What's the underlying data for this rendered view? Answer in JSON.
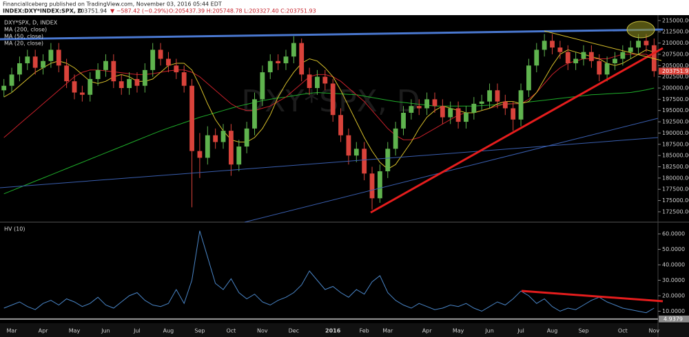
{
  "header": {
    "publisher": "FinancialIceberg published on TradingView.com, November 03, 2016 05:44 EDT",
    "symbol": "INDEX:DXY*INDEX:SPX, D",
    "last": "203751.94",
    "change": "▼ −587.42 (−0.29%)",
    "ohlc": "O:205437.39 H:205748.78 L:203327.40 C:203751.93"
  },
  "chart_data": [
    {
      "type": "candlestick",
      "title": "DXY*SPX, D, INDEX",
      "watermark": "DXY*SPX, D",
      "up_color": "#5fb34e",
      "down_color": "#d9433b",
      "categories": [
        null,
        "Mar",
        null,
        null,
        null,
        "Apr",
        null,
        null,
        null,
        "May",
        null,
        null,
        null,
        "Jun",
        null,
        null,
        null,
        "Jul",
        null,
        null,
        null,
        "Aug",
        null,
        null,
        null,
        "Sep",
        null,
        null,
        null,
        "Oct",
        null,
        null,
        null,
        "Nov",
        null,
        null,
        null,
        "Dec",
        null,
        null,
        null,
        null,
        "2016",
        null,
        null,
        null,
        "Feb",
        null,
        null,
        "Mar",
        null,
        null,
        null,
        null,
        "Apr",
        null,
        null,
        null,
        "May",
        null,
        null,
        null,
        "Jun",
        null,
        null,
        null,
        "Jul",
        null,
        null,
        null,
        "Aug",
        null,
        null,
        null,
        "Sep",
        null,
        null,
        null,
        null,
        "Oct",
        null,
        null,
        null,
        "Nov"
      ],
      "open": [
        199500,
        200500,
        203000,
        205500,
        207000,
        204500,
        206000,
        208500,
        205000,
        201500,
        199000,
        198500,
        202000,
        204000,
        206000,
        201500,
        200000,
        202000,
        200500,
        204000,
        208500,
        206500,
        205000,
        203500,
        200500,
        186000,
        184500,
        189500,
        188000,
        190500,
        183000,
        187000,
        191000,
        197500,
        203500,
        206000,
        205500,
        207000,
        210000,
        203000,
        200000,
        202500,
        201000,
        194000,
        189500,
        185000,
        186500,
        181000,
        175500,
        181500,
        186500,
        191000,
        194500,
        196000,
        195500,
        197500,
        196000,
        193500,
        195500,
        192500,
        194500,
        196500,
        197000,
        199500,
        197000,
        195500,
        193000,
        199500,
        205000,
        208500,
        210500,
        209000,
        208000,
        205500,
        206500,
        208000,
        206000,
        203000,
        205500,
        206500,
        208000,
        209000,
        210500,
        209500
      ],
      "high": [
        202000,
        204500,
        207000,
        208500,
        208500,
        207500,
        210000,
        210000,
        206500,
        203000,
        200500,
        203500,
        205500,
        207500,
        207500,
        203000,
        203500,
        203500,
        205500,
        210000,
        210000,
        208000,
        206500,
        205000,
        202000,
        190000,
        191500,
        191000,
        192000,
        192000,
        188500,
        192500,
        199000,
        205000,
        207500,
        207500,
        208500,
        211500,
        211000,
        204500,
        204000,
        204000,
        202000,
        195500,
        191000,
        188000,
        188000,
        182500,
        183000,
        188000,
        192500,
        196000,
        197500,
        197500,
        199000,
        199000,
        197500,
        197000,
        197000,
        196000,
        198000,
        198500,
        201000,
        201000,
        198500,
        197000,
        201000,
        206500,
        210000,
        212000,
        212000,
        210500,
        209500,
        208000,
        209500,
        209500,
        207500,
        207000,
        208000,
        209500,
        210500,
        212000,
        212000,
        211000
      ],
      "low": [
        198000,
        199000,
        201500,
        204000,
        203000,
        203000,
        204500,
        203500,
        200000,
        197500,
        197000,
        197000,
        200500,
        202500,
        200000,
        198500,
        198500,
        199000,
        199000,
        202500,
        205000,
        203500,
        202000,
        199000,
        173500,
        180000,
        183000,
        186500,
        186500,
        180500,
        181500,
        185500,
        189500,
        196000,
        202000,
        204000,
        204000,
        205500,
        201500,
        198500,
        198500,
        199500,
        192500,
        188000,
        183000,
        183500,
        179500,
        173000,
        174500,
        180000,
        185000,
        189500,
        193000,
        194000,
        194000,
        194500,
        192000,
        192000,
        191000,
        191000,
        193000,
        195000,
        195500,
        195500,
        194000,
        190500,
        191500,
        198000,
        203500,
        207000,
        207500,
        206500,
        204000,
        204000,
        205000,
        204500,
        201500,
        201500,
        204000,
        205000,
        206500,
        207500,
        208000,
        202500
      ],
      "close": [
        200500,
        203000,
        205500,
        207000,
        204500,
        206000,
        208500,
        205000,
        201500,
        199000,
        198500,
        202000,
        204000,
        206000,
        201500,
        200000,
        202000,
        200500,
        204000,
        208500,
        206500,
        205000,
        203500,
        200500,
        186000,
        184500,
        189500,
        188000,
        190500,
        183000,
        187000,
        191000,
        197500,
        203500,
        206000,
        205500,
        207000,
        210000,
        203000,
        200000,
        202500,
        201000,
        194000,
        189500,
        185000,
        186500,
        181000,
        175500,
        181500,
        186500,
        191000,
        194500,
        196000,
        195500,
        197500,
        196000,
        193500,
        195500,
        192500,
        194500,
        196500,
        197000,
        199500,
        197000,
        195500,
        193000,
        199500,
        205000,
        208500,
        210500,
        209000,
        208000,
        205500,
        206500,
        208000,
        206000,
        203000,
        205500,
        206500,
        208000,
        209000,
        210500,
        209500,
        203751.93
      ],
      "last_label": "203751.93",
      "series": [
        {
          "name": "MA (200, close)",
          "color": "#1fae2a",
          "values": [
            176500,
            177200,
            177900,
            178600,
            179300,
            180000,
            180700,
            181400,
            182100,
            182800,
            183500,
            184200,
            184900,
            185600,
            186300,
            187000,
            187700,
            188400,
            189100,
            189800,
            190500,
            191100,
            191700,
            192300,
            192900,
            193500,
            194000,
            194500,
            195000,
            195500,
            196000,
            196400,
            196800,
            197200,
            197500,
            197800,
            198000,
            198300,
            198600,
            198800,
            199000,
            198900,
            198800,
            198700,
            198600,
            198500,
            198200,
            197900,
            197600,
            197300,
            197000,
            196800,
            196600,
            196400,
            196200,
            196000,
            196000,
            196000,
            196000,
            196000,
            196000,
            196100,
            196200,
            196300,
            196400,
            196500,
            196700,
            196900,
            197100,
            197300,
            197500,
            197700,
            197900,
            198100,
            198300,
            198500,
            198600,
            198700,
            198800,
            198900,
            199000,
            199300,
            199600,
            200000
          ]
        },
        {
          "name": "MA (50, close)",
          "color": "#c8202a",
          "values": [
            189000,
            190500,
            192000,
            193500,
            195000,
            196500,
            198000,
            199500,
            201000,
            202500,
            203500,
            204000,
            204000,
            203800,
            203600,
            203400,
            203200,
            203000,
            203000,
            203200,
            203500,
            203800,
            204000,
            204000,
            203500,
            202500,
            201000,
            199500,
            198000,
            196500,
            195500,
            195000,
            195000,
            195500,
            196000,
            197000,
            198000,
            199500,
            201000,
            202500,
            203000,
            203000,
            202500,
            201500,
            200000,
            198500,
            197000,
            195000,
            193000,
            191000,
            189500,
            188500,
            188500,
            189000,
            190000,
            191000,
            192000,
            193000,
            194000,
            194500,
            194500,
            195000,
            195500,
            196000,
            196500,
            196500,
            196500,
            197500,
            199000,
            201000,
            203000,
            204500,
            205500,
            206000,
            206500,
            206500,
            206500,
            206500,
            207000,
            207500,
            207500,
            207500,
            207500,
            206500
          ]
        },
        {
          "name": "MA (20, close)",
          "color": "#d8c02a",
          "values": [
            198000,
            199000,
            200500,
            202000,
            203500,
            204500,
            205500,
            206000,
            205500,
            204500,
            203000,
            201500,
            201000,
            201500,
            202500,
            203000,
            202500,
            201500,
            201500,
            202000,
            203500,
            205000,
            205500,
            205500,
            204000,
            200500,
            196500,
            193000,
            190500,
            188500,
            188000,
            188000,
            189000,
            191000,
            194000,
            198000,
            201000,
            203500,
            205500,
            206500,
            206000,
            204500,
            202500,
            199500,
            196000,
            192500,
            189000,
            186000,
            183500,
            182000,
            183000,
            185500,
            188000,
            191000,
            193500,
            195000,
            196000,
            195500,
            195000,
            194500,
            194500,
            195000,
            195500,
            196500,
            197000,
            197000,
            196500,
            197000,
            199000,
            202000,
            205000,
            207500,
            208500,
            208000,
            207500,
            207000,
            206500,
            205500,
            205000,
            205500,
            206500,
            207500,
            208500,
            208000
          ]
        }
      ],
      "ylim": [
        170350,
        216200
      ],
      "yticks": [
        {
          "value": 172500,
          "label": "172500.00"
        },
        {
          "value": 175000,
          "label": "175000.00"
        },
        {
          "value": 177500,
          "label": "177500.00"
        },
        {
          "value": 180000,
          "label": "180000.00"
        },
        {
          "value": 182500,
          "label": "182500.00"
        },
        {
          "value": 185000,
          "label": "185000.00"
        },
        {
          "value": 187500,
          "label": "187500.00"
        },
        {
          "value": 190000,
          "label": "190000.00"
        },
        {
          "value": 192500,
          "label": "192500.00"
        },
        {
          "value": 195000,
          "label": "195000.00"
        },
        {
          "value": 197500,
          "label": "197500.00"
        },
        {
          "value": 200000,
          "label": "200000.00"
        },
        {
          "value": 202500,
          "label": "202500.00"
        },
        {
          "value": 205000,
          "label": "205000.00"
        },
        {
          "value": 207500,
          "label": "207500.00"
        },
        {
          "value": 210000,
          "label": "210000.00"
        },
        {
          "value": 212500,
          "label": "212500.00"
        },
        {
          "value": 215000,
          "label": "215000.00"
        }
      ]
    },
    {
      "type": "line",
      "title": "HV (10)",
      "series": [
        {
          "name": "HV (10)",
          "color": "#4a86c8",
          "values": [
            12,
            14,
            16,
            13,
            11,
            15,
            17,
            14,
            18,
            16,
            13,
            15,
            19,
            14,
            12,
            16,
            20,
            22,
            17,
            14,
            13,
            15,
            24,
            15,
            30,
            62,
            45,
            28,
            24,
            31,
            22,
            18,
            21,
            16,
            14,
            17,
            19,
            22,
            27,
            36,
            30,
            24,
            26,
            22,
            19,
            24,
            21,
            29,
            33,
            22,
            17,
            14,
            12,
            15,
            13,
            11,
            12,
            14,
            13,
            15,
            12,
            10,
            13,
            16,
            14,
            18,
            23,
            20,
            15,
            18,
            13,
            10,
            12,
            11,
            14,
            17,
            19,
            16,
            14,
            12,
            11,
            10,
            9,
            12
          ]
        }
      ],
      "ylim": [
        2.2,
        66.7
      ],
      "yticks": [
        {
          "value": 10,
          "label": "10.0000"
        },
        {
          "value": 20,
          "label": "20.0000"
        },
        {
          "value": 30,
          "label": "30.0000"
        },
        {
          "value": 40,
          "label": "40.0000"
        },
        {
          "value": 50,
          "label": "50.0000"
        },
        {
          "value": 60,
          "label": "60.0000"
        }
      ],
      "floor_label": {
        "value": 4.9379,
        "label": "4.9379"
      }
    }
  ]
}
